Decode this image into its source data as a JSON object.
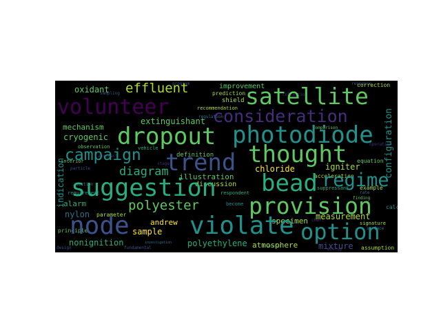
{
  "words": {
    "volunteer": "volunteer",
    "satellite": "satellite",
    "consideration": "consideration",
    "dropout": "dropout",
    "photodiode": "photodiode",
    "thought": "thought",
    "campaign": "campaign",
    "trend": "trend",
    "suggestion": "suggestion",
    "bead": "bead",
    "regime": "regime",
    "provision": "provision",
    "node": "node",
    "violate": "violate",
    "option": "option",
    "effluent": "effluent",
    "oxidant": "oxidant",
    "mechanism": "mechanism",
    "cryogenic": "cryogenic",
    "extinguishant": "extinguishant",
    "diagram": "diagram",
    "polyester": "polyester",
    "illustration": "illustration",
    "discussion": "discussion",
    "chloride": "chloride",
    "igniter": "igniter",
    "configuration": "configuration",
    "indication": "indication",
    "alarm": "alarm",
    "nylon": "nylon",
    "parameter": "parameter",
    "sample": "sample",
    "andrew": "andrew",
    "nonignition": "nonignition",
    "polyethylene": "polyethylene",
    "atmosphere": "atmosphere",
    "mixture": "mixture",
    "measurement": "measurement",
    "specimen": "specimen",
    "improvement": "improvement",
    "prediction": "prediction",
    "shield": "shield",
    "recommendation": "recommendation",
    "definition": "definition",
    "equation": "equation",
    "acceleration": "acceleration",
    "correction": "correction",
    "assumption": "assumption",
    "example": "example",
    "observation": "observation",
    "interior": "interior",
    "principle": "principle",
    "respondent": "respondent",
    "become": "become",
    "requirement": "requirement",
    "calculation": "calculation",
    "signature": "signature",
    "suppressant": "suppressant",
    "comparison": "comparison",
    "finding": "finding",
    "vehicle": "vehicle",
    "sampling": "sampling",
    "regulation": "regulation",
    "abstract": "abstract",
    "particle": "particle",
    "section": "section",
    "stage": "stage",
    "fundamental": "fundamental",
    "investigation": "investigation",
    "chart": "chart",
    "response": "response",
    "surface": "surface",
    "collection": "collection",
    "design": "design",
    "transfer": "transfer",
    "operation": "operation",
    "program": "program",
    "rate": "rate",
    "energy": "energy"
  },
  "colors": {
    "background": "#000000",
    "page": "#ffffff",
    "purple": "#440154",
    "indigo": "#472d7b",
    "blue": "#3b528b",
    "steel": "#2c728e",
    "teal": "#21918c",
    "sea": "#28ae80",
    "green": "#5ec962",
    "lime": "#addc30",
    "yellow": "#fde725"
  }
}
